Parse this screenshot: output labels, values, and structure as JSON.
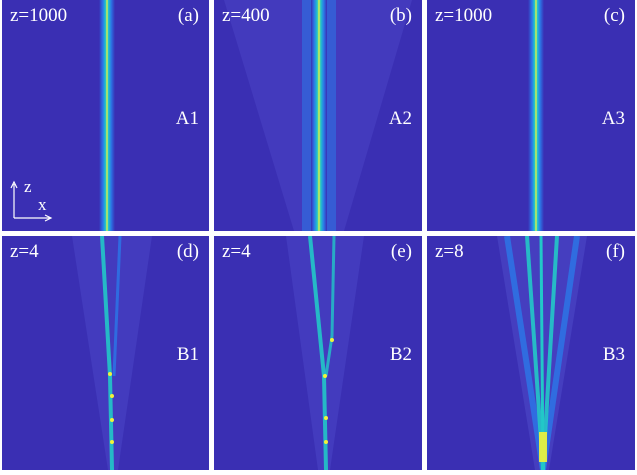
{
  "panels": [
    {
      "z": "z=1000",
      "letter": "(a)",
      "code": "A1"
    },
    {
      "z": "z=400",
      "letter": "(b)",
      "code": "A2"
    },
    {
      "z": "z=1000",
      "letter": "(c)",
      "code": "A3"
    },
    {
      "z": "z=4",
      "letter": "(d)",
      "code": "B1"
    },
    {
      "z": "z=4",
      "letter": "(e)",
      "code": "B2"
    },
    {
      "z": "z=8",
      "letter": "(f)",
      "code": "B3"
    }
  ],
  "axis_labels": {
    "vertical": "z",
    "horizontal": "x"
  },
  "colors": {
    "background": "#3a2fb3",
    "beam_core": "#f2f23a",
    "beam_mid": "#22c8c8",
    "beam_edge": "#2b78e8",
    "label": "#ffffff"
  }
}
